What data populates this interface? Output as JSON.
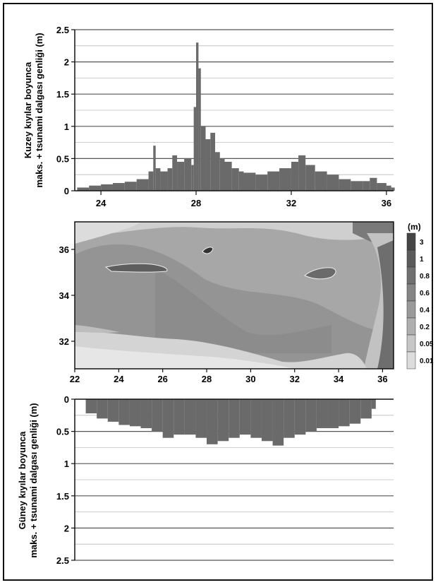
{
  "chart_data": [
    {
      "type": "bar",
      "panel": "north",
      "ylabel_line1": "Kuzey kıyılar boyunca",
      "ylabel_line2": "maks. + tsunami dalgası genliği (m)",
      "xlim": [
        22.9,
        36.3
      ],
      "ylim": [
        0,
        2.5
      ],
      "yticks": [
        "0",
        "0.5",
        "1",
        "1.5",
        "2",
        "2.5"
      ],
      "xticks": [
        "24",
        "28",
        "32",
        "36"
      ],
      "grid": true,
      "x": [
        23.0,
        23.5,
        24.0,
        24.5,
        25.0,
        25.5,
        26.0,
        26.2,
        26.3,
        26.5,
        26.8,
        27.0,
        27.2,
        27.5,
        27.8,
        27.9,
        28.0,
        28.1,
        28.2,
        28.4,
        28.6,
        28.8,
        29.0,
        29.2,
        29.5,
        29.8,
        30.0,
        30.5,
        31.0,
        31.5,
        32.0,
        32.3,
        32.6,
        33.0,
        33.5,
        34.0,
        34.5,
        35.0,
        35.3,
        35.6,
        36.0,
        36.2
      ],
      "values": [
        0.05,
        0.08,
        0.1,
        0.12,
        0.14,
        0.18,
        0.3,
        0.7,
        0.35,
        0.3,
        0.35,
        0.55,
        0.45,
        0.5,
        0.4,
        1.3,
        2.3,
        1.9,
        1.0,
        0.8,
        0.9,
        0.6,
        0.5,
        0.45,
        0.35,
        0.3,
        0.28,
        0.25,
        0.3,
        0.35,
        0.45,
        0.55,
        0.4,
        0.3,
        0.25,
        0.18,
        0.15,
        0.15,
        0.2,
        0.12,
        0.08,
        0.05
      ]
    },
    {
      "type": "heatmap",
      "panel": "map",
      "xlim": [
        22,
        36.5
      ],
      "ylim": [
        30.8,
        37.2
      ],
      "xticks": [
        "22",
        "24",
        "26",
        "28",
        "30",
        "32",
        "34",
        "36"
      ],
      "yticks": [
        "32",
        "34",
        "36"
      ],
      "colorbar_title": "(m)",
      "colorbar_labels": [
        "3",
        "1",
        "0.8",
        "0.6",
        "0.4",
        "0.2",
        "0.05",
        "0.01"
      ],
      "colorbar_colors": [
        "#454545",
        "#5b5b5b",
        "#707070",
        "#858585",
        "#9a9a9a",
        "#afafaf",
        "#c6c6c6",
        "#dcdcdc"
      ]
    },
    {
      "type": "bar",
      "panel": "south",
      "ylabel_line1": "Güney kıyılar boyunca",
      "ylabel_line2": "maks. + tsunami dalgası genliği (m)",
      "xlim": [
        22,
        36.5
      ],
      "ylim": [
        0,
        2.5
      ],
      "inverted": true,
      "yticks": [
        "0",
        "0.5",
        "1",
        "1.5",
        "2",
        "2.5"
      ],
      "grid": true,
      "x": [
        22.5,
        23.0,
        23.5,
        24.0,
        24.5,
        25.0,
        25.5,
        26.0,
        26.5,
        27.0,
        27.5,
        28.0,
        28.5,
        29.0,
        29.5,
        30.0,
        30.5,
        31.0,
        31.5,
        32.0,
        32.5,
        33.0,
        33.5,
        34.0,
        34.5,
        35.0,
        35.5
      ],
      "values": [
        0.22,
        0.3,
        0.35,
        0.4,
        0.42,
        0.45,
        0.5,
        0.6,
        0.55,
        0.55,
        0.6,
        0.7,
        0.65,
        0.6,
        0.55,
        0.6,
        0.65,
        0.72,
        0.6,
        0.55,
        0.5,
        0.45,
        0.45,
        0.42,
        0.38,
        0.3,
        0.15
      ]
    }
  ]
}
